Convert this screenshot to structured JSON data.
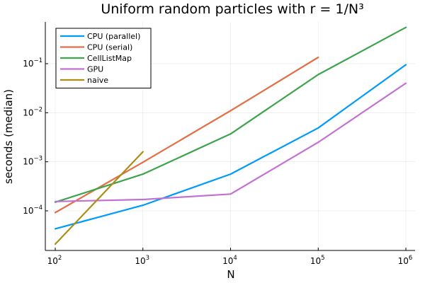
{
  "chart_data": {
    "type": "line",
    "title": "Uniform random particles with r = 1/N³",
    "xlabel": "N",
    "ylabel": "seconds (median)",
    "xscale": "log",
    "yscale": "log",
    "xlim": [
      100,
      1000000
    ],
    "ylim": [
      1e-05,
      1
    ],
    "grid": true,
    "legend_position": "top-left",
    "x_ticks": [
      {
        "base": "10",
        "exp": "2",
        "value": 100
      },
      {
        "base": "10",
        "exp": "3",
        "value": 1000
      },
      {
        "base": "10",
        "exp": "4",
        "value": 10000
      },
      {
        "base": "10",
        "exp": "5",
        "value": 100000
      },
      {
        "base": "10",
        "exp": "6",
        "value": 1000000
      }
    ],
    "y_ticks": [
      {
        "base": "10",
        "exp": "−4",
        "value": 0.0001
      },
      {
        "base": "10",
        "exp": "−3",
        "value": 0.001
      },
      {
        "base": "10",
        "exp": "−2",
        "value": 0.01
      },
      {
        "base": "10",
        "exp": "−1",
        "value": 0.1
      }
    ],
    "series": [
      {
        "name": "CPU (parallel)",
        "color": "#009af9",
        "points": [
          [
            100,
            4.3e-05
          ],
          [
            1000,
            0.00013
          ],
          [
            10000,
            0.00056
          ],
          [
            100000,
            0.0049
          ],
          [
            1000000,
            0.095
          ]
        ]
      },
      {
        "name": "CPU (serial)",
        "color": "#e26f46",
        "points": [
          [
            100,
            9.2e-05
          ],
          [
            1000,
            0.00098
          ],
          [
            10000,
            0.011
          ],
          [
            100000,
            0.135
          ]
        ]
      },
      {
        "name": "CellListMap",
        "color": "#3da44d",
        "points": [
          [
            100,
            0.00015
          ],
          [
            1000,
            0.00056
          ],
          [
            10000,
            0.0037
          ],
          [
            100000,
            0.06
          ],
          [
            1000000,
            0.55
          ]
        ]
      },
      {
        "name": "GPU",
        "color": "#c271d2",
        "points": [
          [
            100,
            0.000155
          ],
          [
            1000,
            0.00017
          ],
          [
            10000,
            0.00022
          ],
          [
            100000,
            0.0025
          ],
          [
            1000000,
            0.04
          ]
        ]
      },
      {
        "name": "naive",
        "color": "#ac8d18",
        "points": [
          [
            100,
            2.1e-05
          ],
          [
            1000,
            0.0016
          ]
        ]
      }
    ]
  }
}
